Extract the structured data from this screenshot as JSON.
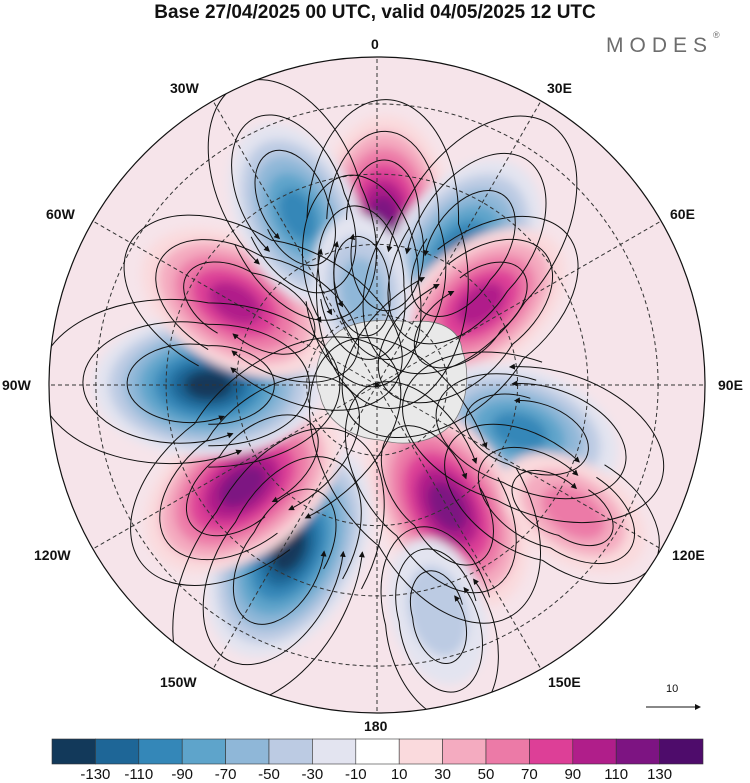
{
  "title": "Base 27/04/2025 00 UTC, valid 04/05/2025 12 UTC",
  "brand": {
    "name": "MODES",
    "mark": "®"
  },
  "longitude_labels": {
    "lon_0": "0",
    "lon_30e": "30E",
    "lon_60e": "60E",
    "lon_90e": "90E",
    "lon_120e": "120E",
    "lon_150e": "150E",
    "lon_180": "180",
    "lon_150w": "150W",
    "lon_120w": "120W",
    "lon_90w": "90W",
    "lon_60w": "60W",
    "lon_30w": "30W"
  },
  "reference_vector": {
    "label": "10"
  },
  "colorbar": {
    "ticks": [
      "-130",
      "-110",
      "-90",
      "-70",
      "-50",
      "-30",
      "-10",
      "10",
      "30",
      "50",
      "70",
      "90",
      "110",
      "130"
    ],
    "colors": [
      "#12395a",
      "#1e6697",
      "#3487b8",
      "#5ea4cb",
      "#8fb7d8",
      "#bccbe3",
      "#e3e4f0",
      "#ffffff",
      "#fadadd",
      "#f4abc0",
      "#ec7aa7",
      "#dd3f97",
      "#b01e8a",
      "#7d1482",
      "#4e0c6b"
    ]
  },
  "anomaly_centers": [
    {
      "lon": 2,
      "lat": 55,
      "value": 110
    },
    {
      "lon": 33,
      "lat": 58,
      "value": -120
    },
    {
      "lon": 52,
      "lat": 62,
      "value": 90
    },
    {
      "lon": 108,
      "lat": 58,
      "value": -100
    },
    {
      "lon": 150,
      "lat": 60,
      "value": 120
    },
    {
      "lon": 165,
      "lat": 40,
      "value": -40
    },
    {
      "lon": 123,
      "lat": 40,
      "value": 50
    },
    {
      "lon": -152,
      "lat": 50,
      "value": -130
    },
    {
      "lon": -127,
      "lat": 54,
      "value": 120
    },
    {
      "lon": -90,
      "lat": 54,
      "value": -130
    },
    {
      "lon": -60,
      "lat": 55,
      "value": 100
    },
    {
      "lon": -25,
      "lat": 50,
      "value": -90
    },
    {
      "lon": -9,
      "lat": 70,
      "value": -50
    }
  ]
}
